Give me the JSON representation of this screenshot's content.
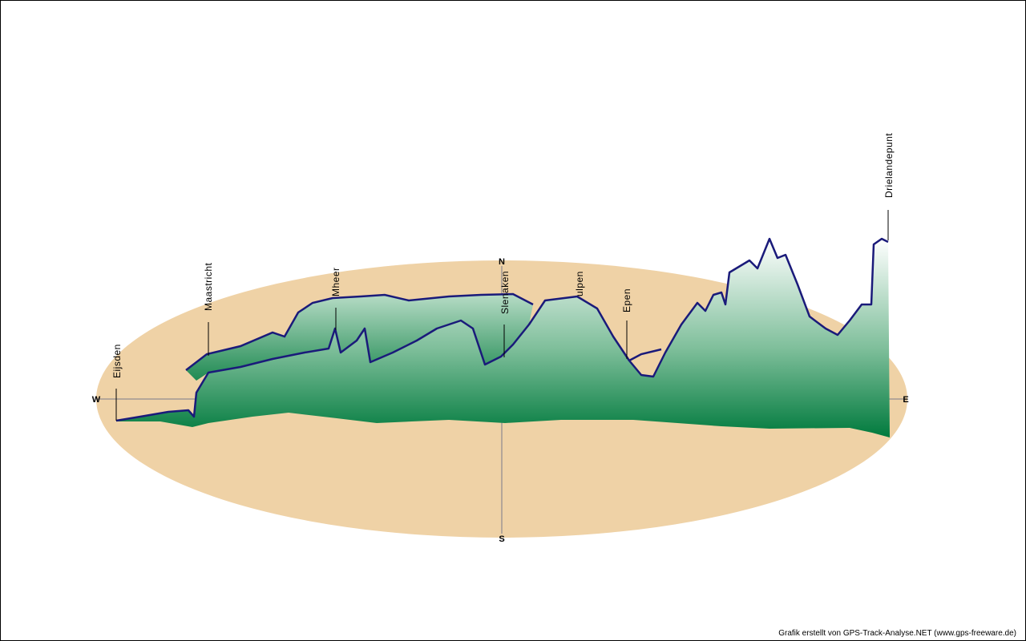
{
  "compass": {
    "west": "W",
    "north": "N",
    "east": "E",
    "south": "S"
  },
  "places": [
    "Eijsden",
    "Maastricht",
    "Mheer",
    "Slenaken",
    "ulpen",
    "Epen",
    "Drielandepunt"
  ],
  "credit": "Grafik erstellt von GPS-Track-Analyse.NET (www.gps-freeware.de)"
}
